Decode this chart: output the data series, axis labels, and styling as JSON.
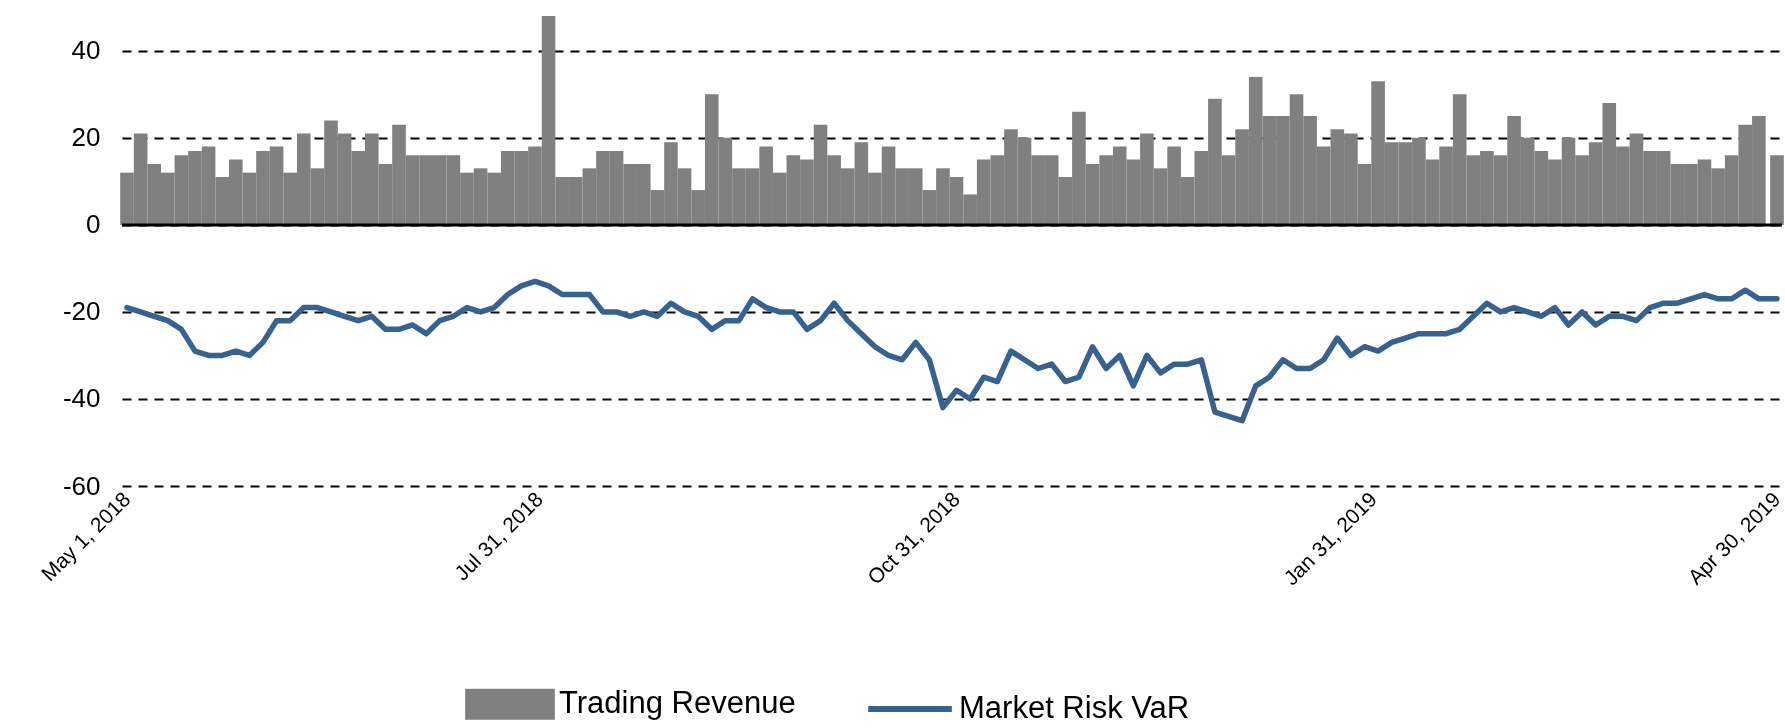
{
  "chart_data": {
    "type": "bar",
    "x": [
      "2018-05-01",
      "2018-05-04",
      "2018-05-07",
      "2018-05-10",
      "2018-05-13",
      "2018-05-16",
      "2018-05-19",
      "2018-05-22",
      "2018-05-25",
      "2018-05-28",
      "2018-05-31",
      "2018-06-03",
      "2018-06-06",
      "2018-06-09",
      "2018-06-12",
      "2018-06-15",
      "2018-06-18",
      "2018-06-21",
      "2018-06-24",
      "2018-06-27",
      "2018-06-30",
      "2018-07-03",
      "2018-07-06",
      "2018-07-09",
      "2018-07-12",
      "2018-07-15",
      "2018-07-18",
      "2018-07-21",
      "2018-07-24",
      "2018-07-27",
      "2018-07-30",
      "2018-08-02",
      "2018-08-05",
      "2018-08-08",
      "2018-08-11",
      "2018-08-14",
      "2018-08-17",
      "2018-08-20",
      "2018-08-23",
      "2018-08-26",
      "2018-08-29",
      "2018-09-01",
      "2018-09-04",
      "2018-09-07",
      "2018-09-10",
      "2018-09-13",
      "2018-09-16",
      "2018-09-19",
      "2018-09-22",
      "2018-09-25",
      "2018-09-28",
      "2018-10-01",
      "2018-10-04",
      "2018-10-07",
      "2018-10-10",
      "2018-10-13",
      "2018-10-16",
      "2018-10-19",
      "2018-10-22",
      "2018-10-25",
      "2018-10-28",
      "2018-10-31",
      "2018-11-03",
      "2018-11-06",
      "2018-11-09",
      "2018-11-12",
      "2018-11-15",
      "2018-11-18",
      "2018-11-21",
      "2018-11-24",
      "2018-11-27",
      "2018-11-30",
      "2018-12-03",
      "2018-12-06",
      "2018-12-09",
      "2018-12-12",
      "2018-12-15",
      "2018-12-18",
      "2018-12-21",
      "2018-12-24",
      "2018-12-27",
      "2018-12-30",
      "2019-01-02",
      "2019-01-05",
      "2019-01-08",
      "2019-01-11",
      "2019-01-14",
      "2019-01-17",
      "2019-01-20",
      "2019-01-23",
      "2019-01-26",
      "2019-01-29",
      "2019-02-01",
      "2019-02-04",
      "2019-02-07",
      "2019-02-10",
      "2019-02-13",
      "2019-02-16",
      "2019-02-19",
      "2019-02-22",
      "2019-02-25",
      "2019-02-28",
      "2019-03-03",
      "2019-03-06",
      "2019-03-09",
      "2019-03-12",
      "2019-03-15",
      "2019-03-18",
      "2019-03-21",
      "2019-03-24",
      "2019-03-27",
      "2019-03-30",
      "2019-04-02",
      "2019-04-05",
      "2019-04-08",
      "2019-04-11",
      "2019-04-14",
      "2019-04-17",
      "2019-04-20",
      "2019-04-23",
      "2019-04-26",
      "2019-04-30"
    ],
    "series": [
      {
        "name": "Trading Revenue",
        "color": "#808080",
        "values": [
          12,
          21,
          14,
          12,
          16,
          17,
          18,
          11,
          15,
          12,
          17,
          18,
          12,
          21,
          13,
          24,
          21,
          17,
          21,
          14,
          23,
          16,
          16,
          16,
          16,
          12,
          13,
          12,
          17,
          17,
          18,
          48,
          11,
          11,
          13,
          17,
          17,
          14,
          14,
          8,
          19,
          13,
          8,
          30,
          20,
          13,
          13,
          18,
          12,
          16,
          15,
          23,
          16,
          13,
          19,
          12,
          18,
          13,
          13,
          8,
          13,
          11,
          7,
          15,
          16,
          22,
          20,
          16,
          16,
          11,
          26,
          14,
          16,
          18,
          15,
          21,
          13,
          18,
          11,
          17,
          29,
          16,
          22,
          34,
          25,
          25,
          30,
          25,
          18,
          22,
          21,
          14,
          33,
          19,
          19,
          20,
          15,
          18,
          30,
          16,
          17,
          16,
          25,
          20,
          17,
          15,
          20,
          16,
          19,
          28,
          18,
          21,
          17,
          17,
          14,
          14,
          15,
          13,
          16,
          23,
          25,
          16
        ]
      },
      {
        "name": "Market Risk VaR",
        "type": "line",
        "color": "#37618f",
        "values": [
          -19,
          -20,
          -21,
          -22,
          -24,
          -29,
          -30,
          -30,
          -29,
          -30,
          -27,
          -22,
          -22,
          -19,
          -19,
          -20,
          -21,
          -22,
          -21,
          -24,
          -24,
          -23,
          -25,
          -22,
          -21,
          -19,
          -20,
          -19,
          -16,
          -14,
          -13,
          -14,
          -16,
          -16,
          -16,
          -20,
          -20,
          -21,
          -20,
          -21,
          -18,
          -20,
          -21,
          -24,
          -22,
          -22,
          -17,
          -19,
          -20,
          -20,
          -24,
          -22,
          -18,
          -22,
          -25,
          -28,
          -30,
          -31,
          -27,
          -31,
          -42,
          -38,
          -40,
          -35,
          -36,
          -29,
          -31,
          -33,
          -32,
          -36,
          -35,
          -28,
          -33,
          -30,
          -37,
          -30,
          -34,
          -32,
          -32,
          -31,
          -43,
          -44,
          -45,
          -37,
          -35,
          -31,
          -33,
          -33,
          -31,
          -26,
          -30,
          -28,
          -29,
          -27,
          -26,
          -25,
          -25,
          -25,
          -24,
          -21,
          -18,
          -20,
          -19,
          -20,
          -21,
          -19,
          -23,
          -20,
          -23,
          -21,
          -21,
          -22,
          -19,
          -18,
          -18,
          -17,
          -16,
          -17,
          -17,
          -15,
          -17,
          -17
        ]
      }
    ],
    "xlim": [
      "2018-05-01",
      "2019-04-30"
    ],
    "xticks": [
      {
        "value": "2018-05-01",
        "label": "May 1, 2018"
      },
      {
        "value": "2018-07-31",
        "label": "Jul 31, 2018"
      },
      {
        "value": "2018-10-31",
        "label": "Oct 31, 2018"
      },
      {
        "value": "2019-01-31",
        "label": "Jan 31, 2019"
      },
      {
        "value": "2019-04-30",
        "label": "Apr 30, 2019"
      }
    ],
    "ylim": [
      -60,
      48
    ],
    "yticks": [
      -60,
      -40,
      -20,
      0,
      20,
      40
    ],
    "ref_lines": [
      {
        "axis": "y",
        "value": 0,
        "color": "#000000"
      }
    ],
    "grid": "y",
    "legend": "bottom"
  }
}
